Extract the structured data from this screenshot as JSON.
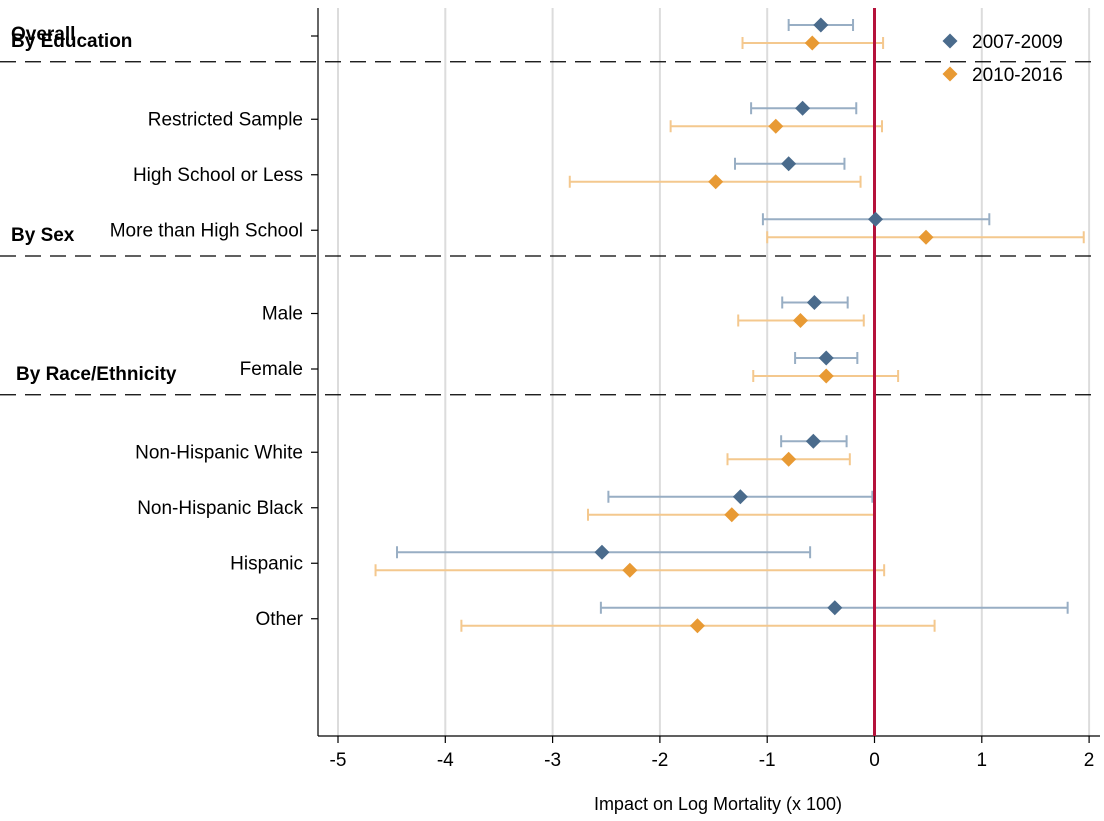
{
  "chart_data": {
    "type": "scatter",
    "xlabel": "Impact on Log Mortality (x 100)",
    "xlim": [
      -5.3,
      2.15
    ],
    "xticks": [
      -5,
      -4,
      -3,
      -2,
      -1,
      0,
      1,
      2
    ],
    "grid": true,
    "legend_position": "top-right",
    "reference_line": {
      "x": 0,
      "color": "#b5123b"
    },
    "colors": {
      "series1": "#4a6b8c",
      "series1_ci": "#98aec4",
      "series2": "#e89a34",
      "series2_ci": "#f4c88e"
    },
    "series": [
      {
        "name": "2007-2009",
        "marker": "diamond"
      },
      {
        "name": "2010-2016",
        "marker": "diamond"
      }
    ],
    "groups": [
      {
        "header": "Overall",
        "rows": [
          {
            "label": "",
            "est": [
              -0.5,
              -0.58
            ],
            "lo": [
              -0.8,
              -1.23
            ],
            "hi": [
              -0.2,
              0.08
            ]
          }
        ]
      },
      {
        "header": "By Education",
        "rows": [
          {
            "label": "Restricted Sample",
            "est": [
              -0.67,
              -0.92
            ],
            "lo": [
              -1.15,
              -1.9
            ],
            "hi": [
              -0.17,
              0.07
            ]
          },
          {
            "label": "High School or Less",
            "est": [
              -0.8,
              -1.48
            ],
            "lo": [
              -1.3,
              -2.84
            ],
            "hi": [
              -0.28,
              -0.13
            ]
          },
          {
            "label": "More than High School",
            "est": [
              0.01,
              0.48
            ],
            "lo": [
              -1.04,
              -1.0
            ],
            "hi": [
              1.07,
              1.95
            ]
          }
        ]
      },
      {
        "header": "By Sex",
        "rows": [
          {
            "label": "Male",
            "est": [
              -0.56,
              -0.69
            ],
            "lo": [
              -0.86,
              -1.27
            ],
            "hi": [
              -0.25,
              -0.1
            ]
          },
          {
            "label": "Female",
            "est": [
              -0.45,
              -0.45
            ],
            "lo": [
              -0.74,
              -1.13
            ],
            "hi": [
              -0.16,
              0.22
            ]
          }
        ]
      },
      {
        "header": "By Race/Ethnicity",
        "rows": [
          {
            "label": "Non-Hispanic White",
            "est": [
              -0.57,
              -0.8
            ],
            "lo": [
              -0.87,
              -1.37
            ],
            "hi": [
              -0.26,
              -0.23
            ]
          },
          {
            "label": "Non-Hispanic Black",
            "est": [
              -1.25,
              -1.33
            ],
            "lo": [
              -2.48,
              -2.67
            ],
            "hi": [
              -0.02,
              0.0
            ]
          },
          {
            "label": "Hispanic",
            "est": [
              -2.54,
              -2.28
            ],
            "lo": [
              -4.45,
              -4.65
            ],
            "hi": [
              -0.6,
              0.09
            ]
          },
          {
            "label": "Other",
            "est": [
              -0.37,
              -1.65
            ],
            "lo": [
              -2.55,
              -3.85
            ],
            "hi": [
              1.8,
              0.56
            ]
          }
        ]
      }
    ]
  }
}
